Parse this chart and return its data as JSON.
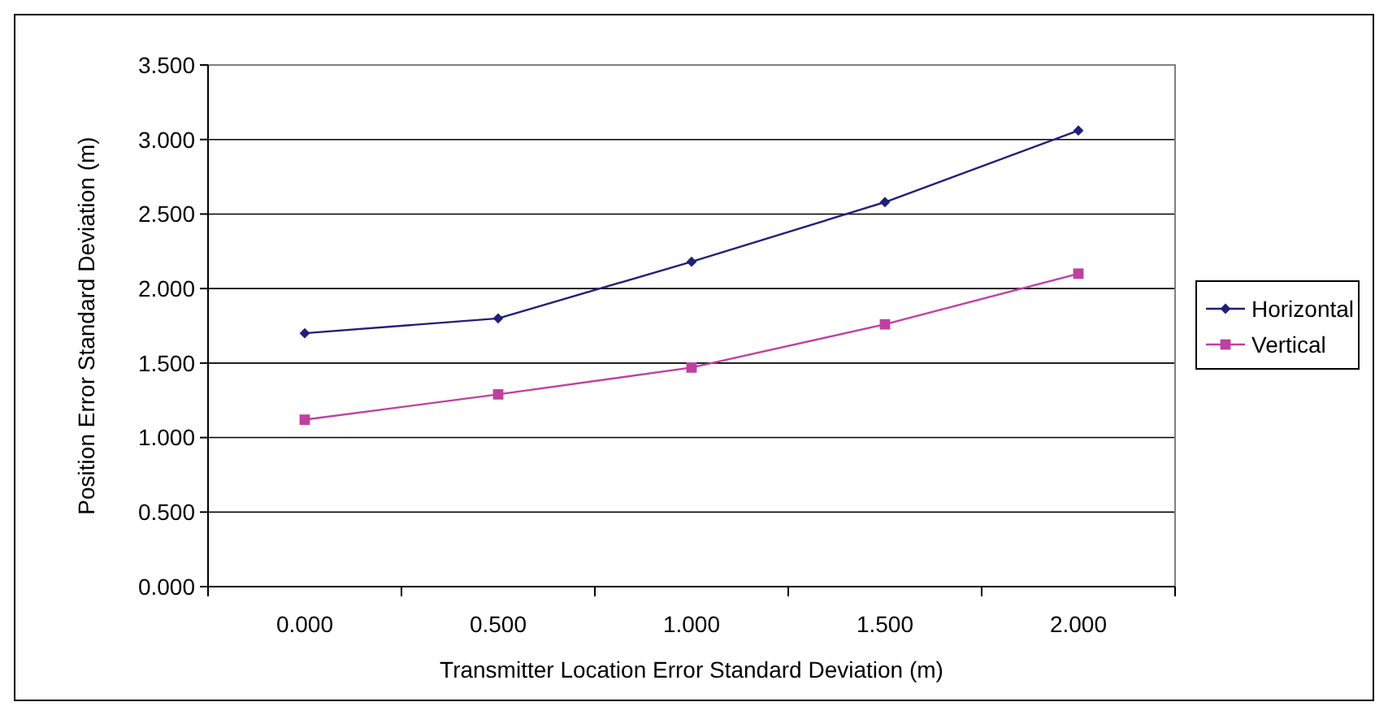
{
  "chart_data": {
    "type": "line",
    "xlabel": "Transmitter Location Error Standard Deviation (m)",
    "ylabel": "Position Error Standard Deviation (m)",
    "categories": [
      "0.000",
      "0.500",
      "1.000",
      "1.500",
      "2.000"
    ],
    "series": [
      {
        "name": "Horizontal",
        "color": "#1f1f7a",
        "marker": "diamond",
        "values": [
          1.7,
          1.8,
          2.18,
          2.58,
          3.06
        ]
      },
      {
        "name": "Vertical",
        "color": "#c040a0",
        "marker": "square",
        "values": [
          1.12,
          1.29,
          1.47,
          1.76,
          2.1
        ]
      }
    ],
    "ylim": [
      0,
      3.5
    ],
    "yticks": [
      {
        "value": 0,
        "label": "0.000"
      },
      {
        "value": 0.5,
        "label": "0.500"
      },
      {
        "value": 1,
        "label": "1.000"
      },
      {
        "value": 1.5,
        "label": "1.500"
      },
      {
        "value": 2,
        "label": "2.000"
      },
      {
        "value": 2.5,
        "label": "2.500"
      },
      {
        "value": 3,
        "label": "3.000"
      },
      {
        "value": 3.5,
        "label": "3.500"
      }
    ],
    "grid": "y",
    "legend": "right",
    "line_style": "solid"
  }
}
